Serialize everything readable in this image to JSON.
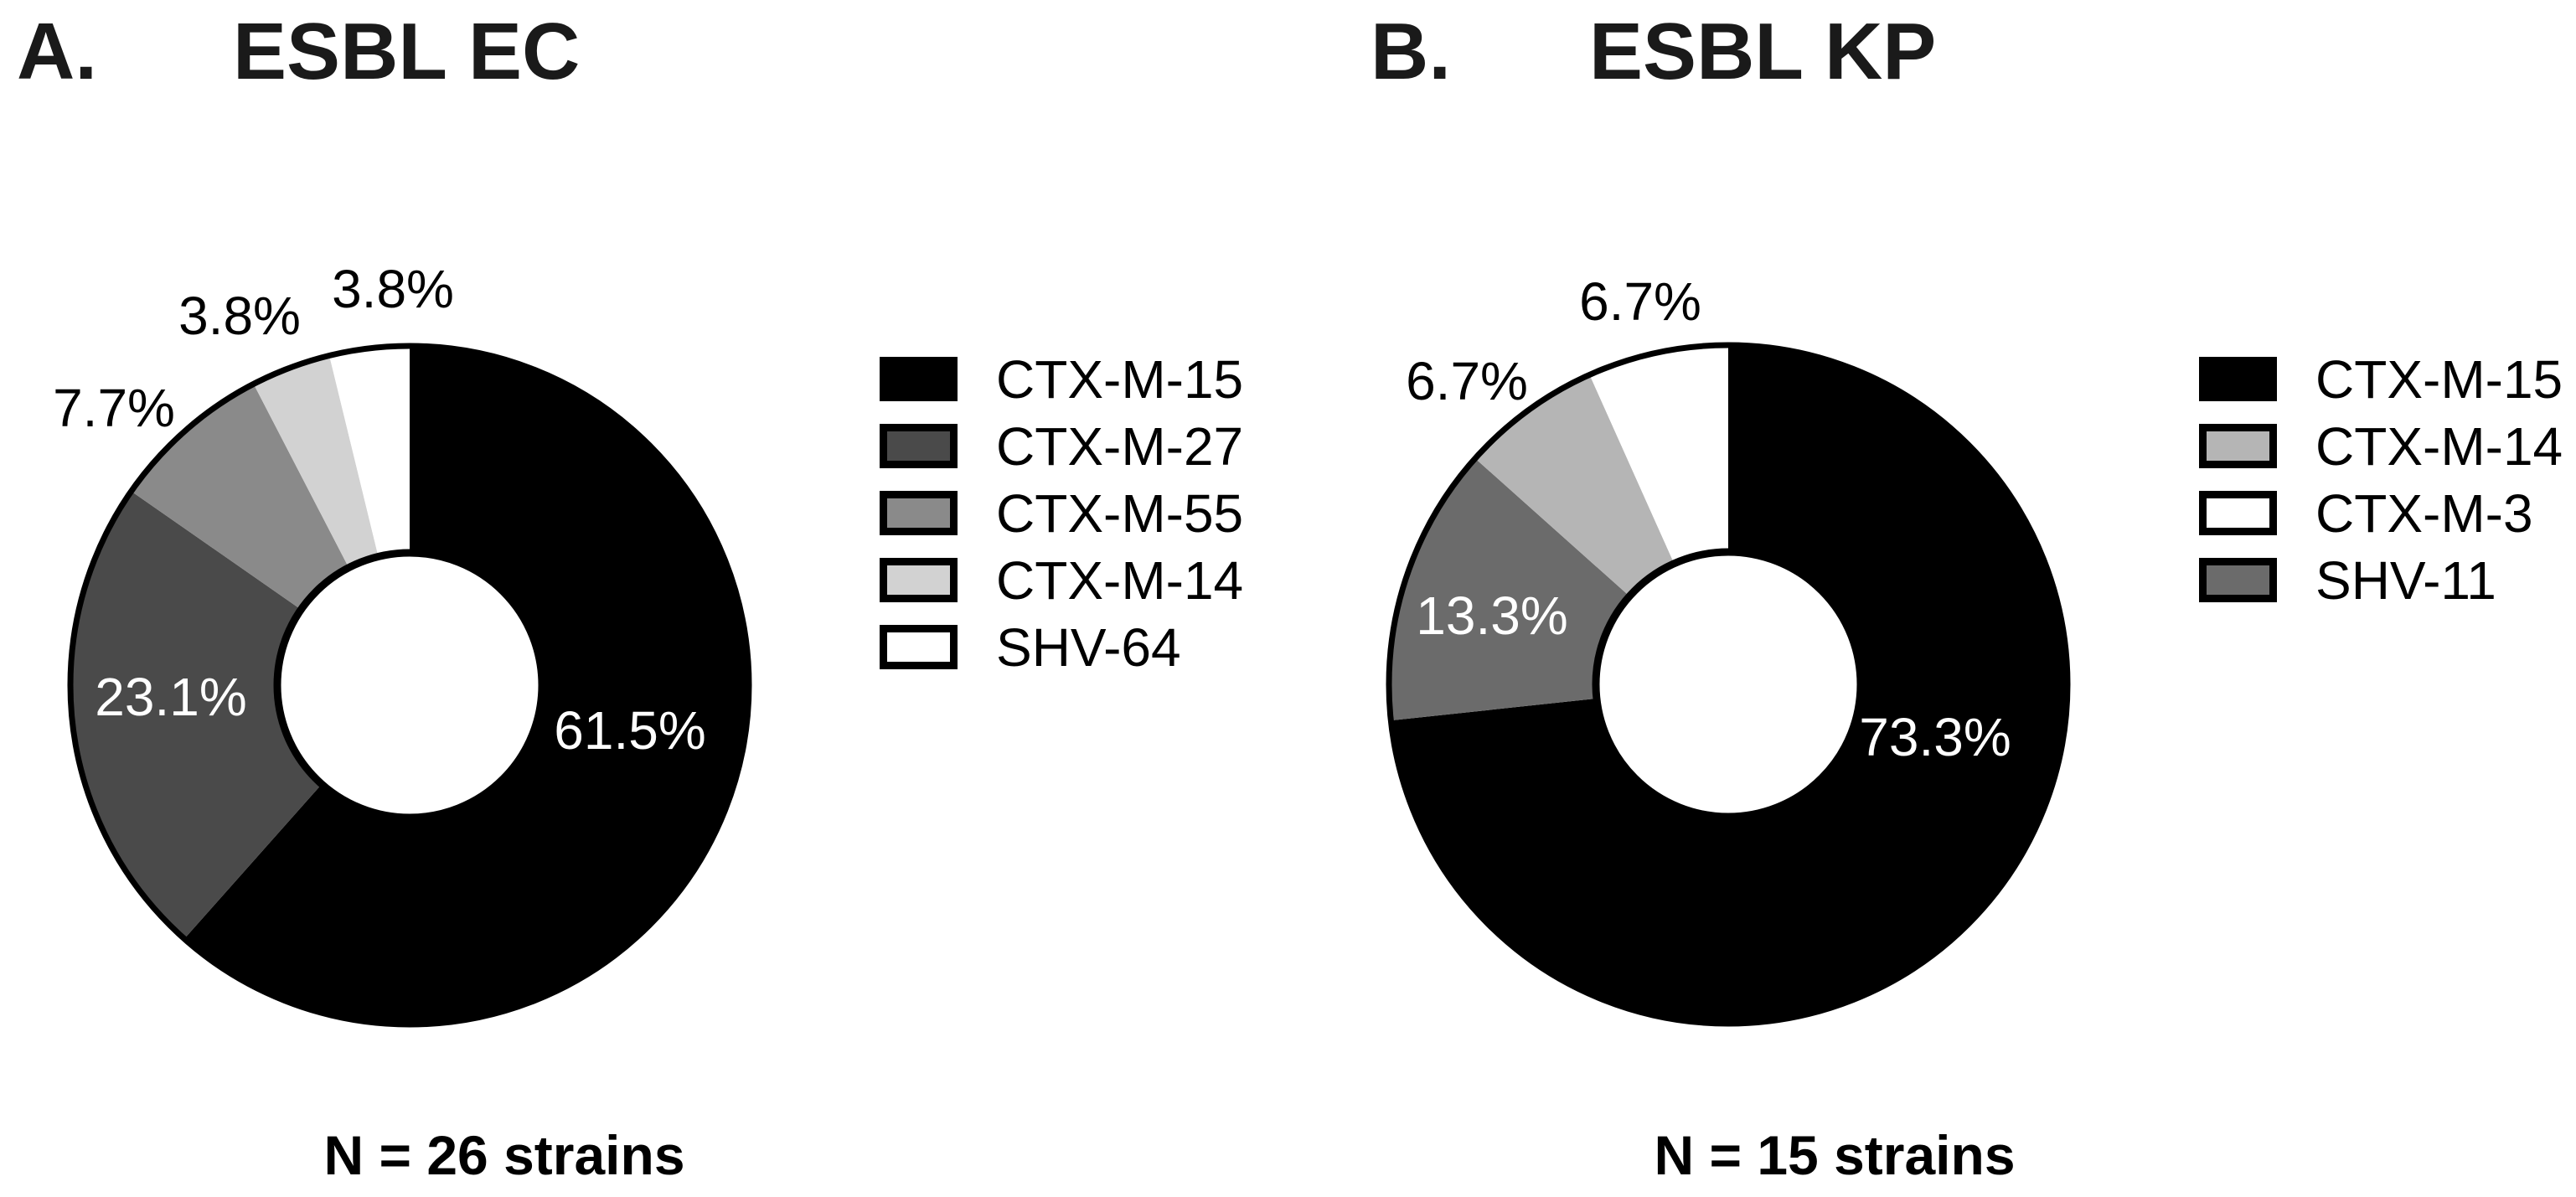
{
  "background": "#ffffff",
  "panels": [
    {
      "letter": "A.",
      "title": "ESBL EC",
      "n_text": "N = 26 strains"
    },
    {
      "letter": "B.",
      "title": "ESBL KP",
      "n_text": "N = 15 strains"
    }
  ],
  "chart_data": [
    {
      "type": "pie",
      "subtype": "donut",
      "panel_letter": "A.",
      "title": "ESBL EC",
      "n_strains": 26,
      "n_text": "N = 26 strains",
      "start_angle_deg": 0,
      "direction": "clockwise",
      "legend_position": "right",
      "ring_outline_color": "#000000",
      "hole_fill": "#ffffff",
      "slices": [
        {
          "label": "CTX-M-15",
          "pct": 61.5,
          "pct_text": "61.5%",
          "color": "#000000",
          "label_color": "#ffffff",
          "label_inside": true
        },
        {
          "label": "CTX-M-27",
          "pct": 23.1,
          "pct_text": "23.1%",
          "color": "#4a4a4a",
          "label_color": "#ffffff",
          "label_inside": true
        },
        {
          "label": "CTX-M-55",
          "pct": 7.7,
          "pct_text": "7.7%",
          "color": "#8a8a8a",
          "label_color": "#000000",
          "label_inside": false
        },
        {
          "label": "CTX-M-14",
          "pct": 3.8,
          "pct_text": "3.8%",
          "color": "#d2d2d2",
          "label_color": "#000000",
          "label_inside": false
        },
        {
          "label": "SHV-64",
          "pct": 3.8,
          "pct_text": "3.8%",
          "color": "#ffffff",
          "label_color": "#000000",
          "label_inside": false
        }
      ],
      "legend": [
        {
          "label": "CTX-M-15",
          "color": "#000000"
        },
        {
          "label": "CTX-M-27",
          "color": "#4a4a4a"
        },
        {
          "label": "CTX-M-55",
          "color": "#8a8a8a"
        },
        {
          "label": "CTX-M-14",
          "color": "#d2d2d2"
        },
        {
          "label": "SHV-64",
          "color": "#ffffff"
        }
      ]
    },
    {
      "type": "pie",
      "subtype": "donut",
      "panel_letter": "B.",
      "title": "ESBL KP",
      "n_strains": 15,
      "n_text": "N = 15 strains",
      "start_angle_deg": 0,
      "direction": "clockwise",
      "legend_position": "right",
      "ring_outline_color": "#000000",
      "hole_fill": "#ffffff",
      "slices": [
        {
          "label": "CTX-M-15",
          "pct": 73.3,
          "pct_text": "73.3%",
          "color": "#000000",
          "label_color": "#ffffff",
          "label_inside": true
        },
        {
          "label": "SHV-11",
          "pct": 13.3,
          "pct_text": "13.3%",
          "color": "#6b6b6b",
          "label_color": "#ffffff",
          "label_inside": true
        },
        {
          "label": "CTX-M-14",
          "pct": 6.7,
          "pct_text": "6.7%",
          "color": "#b5b5b5",
          "label_color": "#000000",
          "label_inside": false
        },
        {
          "label": "CTX-M-3",
          "pct": 6.7,
          "pct_text": "6.7%",
          "color": "#ffffff",
          "label_color": "#000000",
          "label_inside": false
        }
      ],
      "legend": [
        {
          "label": "CTX-M-15",
          "color": "#000000"
        },
        {
          "label": "CTX-M-14",
          "color": "#b5b5b5"
        },
        {
          "label": "CTX-M-3",
          "color": "#ffffff"
        },
        {
          "label": "SHV-11",
          "color": "#6b6b6b"
        }
      ]
    }
  ]
}
